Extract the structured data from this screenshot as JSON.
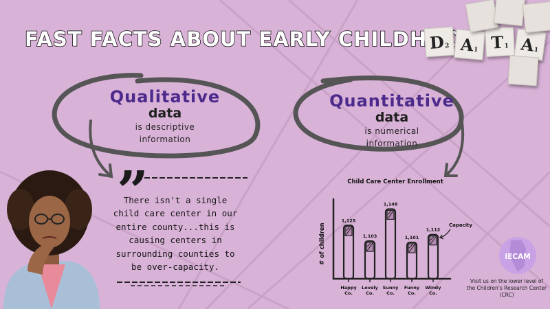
{
  "title": "FAST FACTS ABOUT EARLY CHILDHOOD",
  "tiles": [
    "D",
    "A",
    "T",
    "A"
  ],
  "tile_subscripts": [
    "2",
    "1",
    "1",
    "1"
  ],
  "qualitative": {
    "heading": "Qualitative",
    "word": "data",
    "line1": "is descriptive",
    "line2": "information"
  },
  "quantitative": {
    "heading": "Quantitative",
    "word": "data",
    "line1": "is numerical",
    "line2": "information"
  },
  "quote": "There isn't a single child care center in our entire county...this is causing centers in surrounding counties to be over-capacity.",
  "logo_text": "IECAM",
  "visit_text": "Visit us on the lower level of the Children's Research Center (CRC)",
  "colors": {
    "background": "#d9b2d7",
    "heading": "#4b2a8c",
    "oval": "#555555",
    "logo": "#c9a2e6"
  },
  "chart_data": {
    "type": "bar",
    "title": "Child Care Center Enrollment",
    "ylabel": "# of children",
    "categories": [
      [
        "Happy",
        "Co."
      ],
      [
        "Lovely",
        "Co."
      ],
      [
        "Sunny",
        "Co."
      ],
      [
        "Funny",
        "Co."
      ],
      [
        "Windy",
        "Co."
      ]
    ],
    "values": [
      1125,
      1103,
      1148,
      1101,
      1112
    ],
    "value_labels": [
      "1,125",
      "1,103",
      "1,148",
      "1,101",
      "1,112"
    ],
    "annotation": "Capacity",
    "ylim": [
      1050,
      1160
    ]
  }
}
